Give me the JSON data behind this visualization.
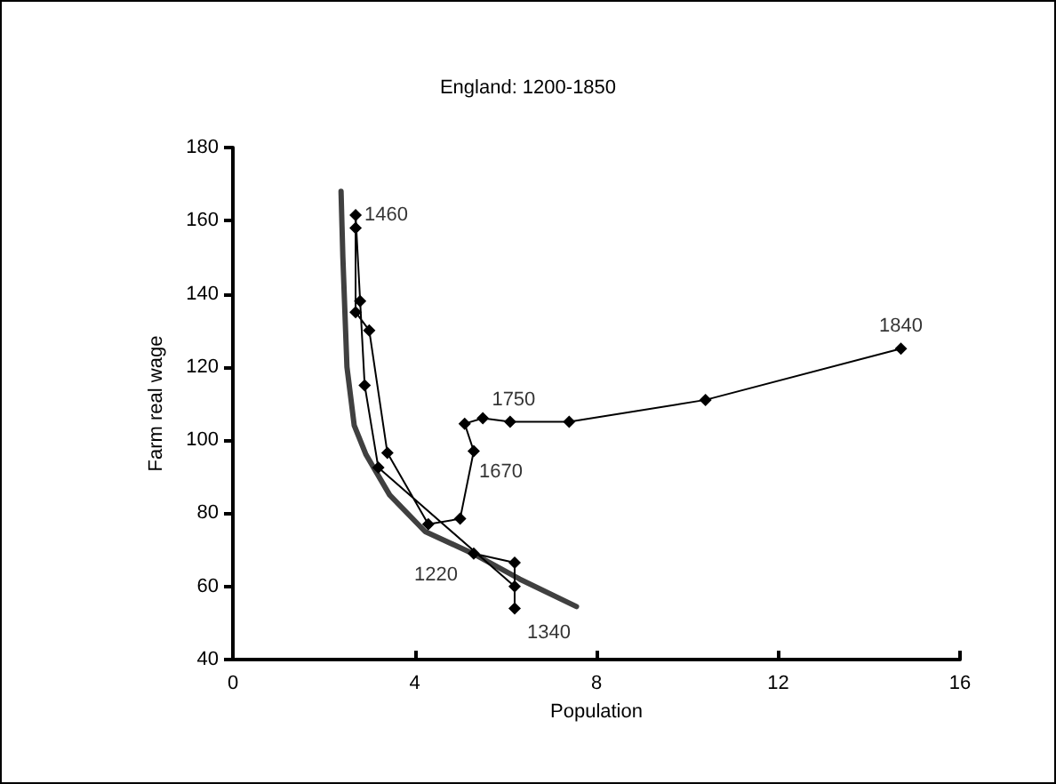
{
  "chart_data": {
    "type": "line",
    "title": "England: 1200-1850",
    "xlabel": "Population",
    "ylabel": "Farm real wage",
    "xlim": [
      0,
      16
    ],
    "xticks": [
      0,
      4,
      8,
      12,
      16
    ],
    "ylim": [
      40,
      180
    ],
    "yticks": [
      40,
      60,
      80,
      100,
      120,
      140,
      160,
      180
    ],
    "grid": false,
    "series": [
      {
        "color": "#000000",
        "marker": "diamond",
        "x": [
          5.3,
          6.2,
          6.2,
          6.2,
          3.2,
          2.9,
          2.8,
          2.7,
          2.7,
          2.7,
          3.0,
          3.4,
          4.3,
          5.0,
          5.3,
          5.1,
          5.5,
          6.1,
          7.4,
          10.4,
          14.7
        ],
        "values": [
          69,
          66.5,
          54,
          60,
          92.5,
          115,
          138,
          161.5,
          158,
          135,
          130,
          96.5,
          77,
          78.5,
          97,
          104.5,
          106,
          105,
          105,
          111,
          125
        ]
      },
      {
        "color": "#404040",
        "marker": "none",
        "x": [
          2.38,
          2.42,
          2.51,
          2.67,
          2.93,
          3.45,
          4.23,
          5.28,
          6.31,
          7.56
        ],
        "values": [
          168,
          150,
          120,
          104,
          96,
          85,
          75,
          69,
          62,
          54.5
        ]
      }
    ],
    "annotations": [
      {
        "text": "1220",
        "x": 5.3,
        "y": 69
      },
      {
        "text": "1340",
        "x": 6.2,
        "y": 54
      },
      {
        "text": "1460",
        "x": 2.7,
        "y": 161.5
      },
      {
        "text": "1670",
        "x": 5.3,
        "y": 97
      },
      {
        "text": "1750",
        "x": 6.1,
        "y": 105
      },
      {
        "text": "1840",
        "x": 14.7,
        "y": 125
      }
    ]
  }
}
